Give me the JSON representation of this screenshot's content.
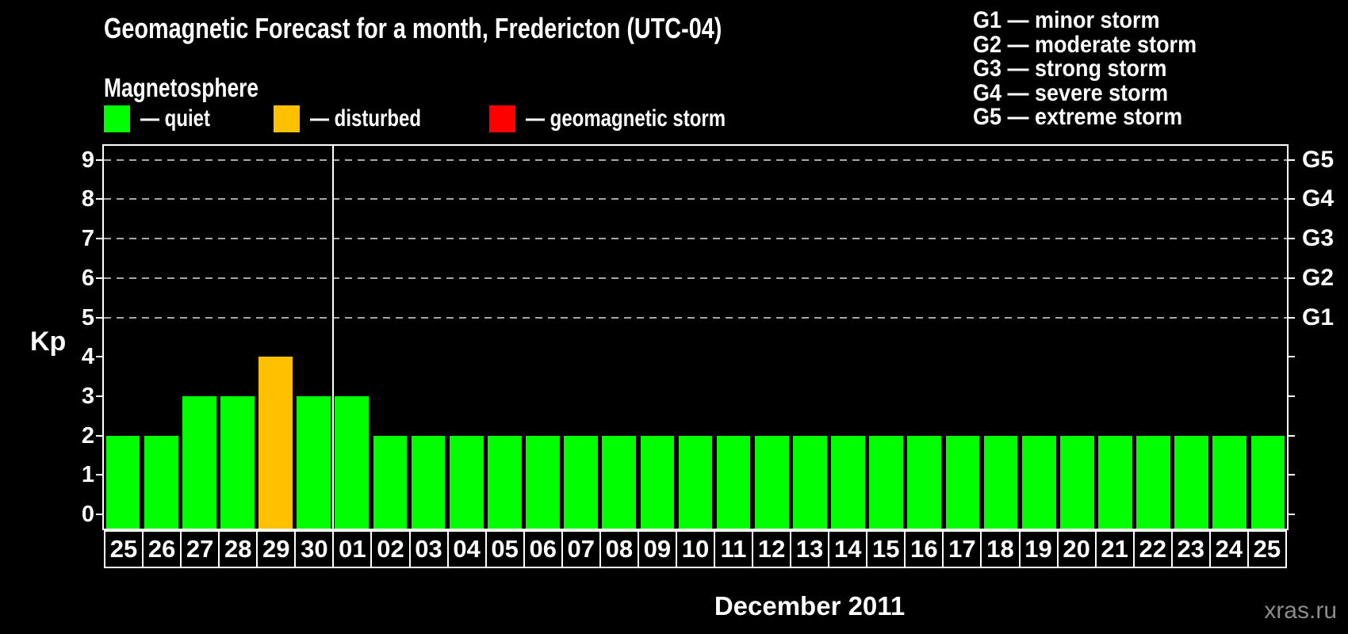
{
  "title": "Geomagnetic Forecast for a month, Fredericton (UTC-04)",
  "magnetosphere_legend": {
    "heading": "Magnetosphere",
    "items": [
      {
        "state": "quiet",
        "label": "— quiet",
        "color": "#00FF00"
      },
      {
        "state": "disturbed",
        "label": "— disturbed",
        "color": "#FFC000"
      },
      {
        "state": "storm",
        "label": "— geomagnetic storm",
        "color": "#FF0000"
      }
    ]
  },
  "storm_scale_legend": [
    "G1 — minor storm",
    "G2 — moderate storm",
    "G3 — strong storm",
    "G4 — severe storm",
    "G5 — extreme storm"
  ],
  "watermark": "xras.ru",
  "chart_data": {
    "type": "bar",
    "title": "Geomagnetic Forecast for a month, Fredericton (UTC-04)",
    "xlabel": "December 2011",
    "ylabel": "Kp",
    "ylim": [
      0,
      9
    ],
    "yticks": [
      0,
      1,
      2,
      3,
      4,
      5,
      6,
      7,
      8,
      9
    ],
    "gridlines_at": [
      5,
      6,
      7,
      8,
      9
    ],
    "grid": "dashed-horizontal",
    "legend_position": "top",
    "right_axis_labels": [
      {
        "kp": 5,
        "label": "G1"
      },
      {
        "kp": 6,
        "label": "G2"
      },
      {
        "kp": 7,
        "label": "G3"
      },
      {
        "kp": 8,
        "label": "G4"
      },
      {
        "kp": 9,
        "label": "G5"
      }
    ],
    "categories": [
      "25",
      "26",
      "27",
      "28",
      "29",
      "30",
      "01",
      "02",
      "03",
      "04",
      "05",
      "06",
      "07",
      "08",
      "09",
      "10",
      "11",
      "12",
      "13",
      "14",
      "15",
      "16",
      "17",
      "18",
      "19",
      "20",
      "21",
      "22",
      "23",
      "24",
      "25"
    ],
    "values": [
      2,
      2,
      3,
      3,
      4,
      3,
      3,
      2,
      2,
      2,
      2,
      2,
      2,
      2,
      2,
      2,
      2,
      2,
      2,
      2,
      2,
      2,
      2,
      2,
      2,
      2,
      2,
      2,
      2,
      2,
      2
    ],
    "states": [
      "quiet",
      "quiet",
      "quiet",
      "quiet",
      "disturbed",
      "quiet",
      "quiet",
      "quiet",
      "quiet",
      "quiet",
      "quiet",
      "quiet",
      "quiet",
      "quiet",
      "quiet",
      "quiet",
      "quiet",
      "quiet",
      "quiet",
      "quiet",
      "quiet",
      "quiet",
      "quiet",
      "quiet",
      "quiet",
      "quiet",
      "quiet",
      "quiet",
      "quiet",
      "quiet",
      "quiet"
    ],
    "state_colors": {
      "quiet": "#00FF00",
      "disturbed": "#FFC000",
      "storm": "#FF0000"
    },
    "month_separator_after_index": 5,
    "axis_color": "#FFFFFF",
    "gridline_color": "#A6A6A6",
    "background_color": "#000000"
  }
}
